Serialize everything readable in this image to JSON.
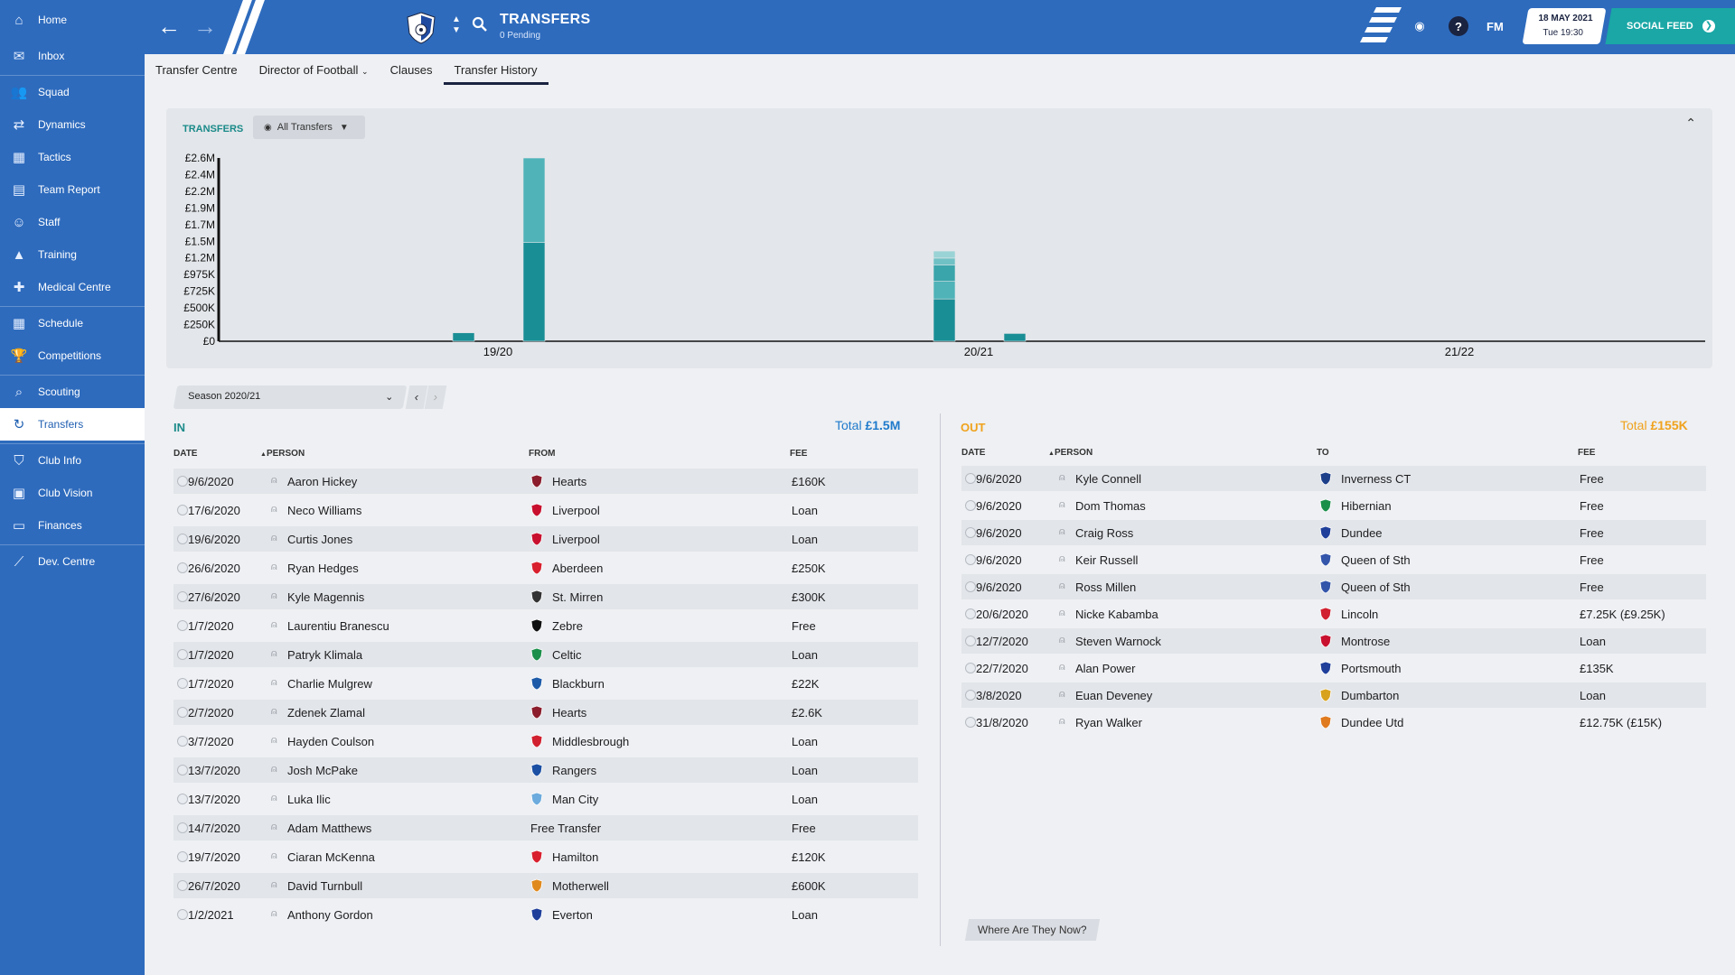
{
  "sidebar": {
    "items": [
      {
        "label": "Home",
        "icon": "home-icon"
      },
      {
        "label": "Inbox",
        "icon": "inbox-icon"
      },
      {
        "label": "Squad",
        "icon": "squad-icon"
      },
      {
        "label": "Dynamics",
        "icon": "dynamics-icon"
      },
      {
        "label": "Tactics",
        "icon": "tactics-icon"
      },
      {
        "label": "Team Report",
        "icon": "report-icon"
      },
      {
        "label": "Staff",
        "icon": "staff-icon"
      },
      {
        "label": "Training",
        "icon": "training-icon"
      },
      {
        "label": "Medical Centre",
        "icon": "medical-icon"
      },
      {
        "label": "Schedule",
        "icon": "calendar-icon"
      },
      {
        "label": "Competitions",
        "icon": "trophy-icon"
      },
      {
        "label": "Scouting",
        "icon": "search-icon"
      },
      {
        "label": "Transfers",
        "icon": "refresh-icon"
      },
      {
        "label": "Club Info",
        "icon": "shield-icon"
      },
      {
        "label": "Club Vision",
        "icon": "vision-icon"
      },
      {
        "label": "Finances",
        "icon": "cash-icon"
      },
      {
        "label": "Dev. Centre",
        "icon": "growth-icon"
      }
    ]
  },
  "header": {
    "title": "TRANSFERS",
    "subtitle": "0 Pending",
    "fm_logo": "FM",
    "date": "18 MAY 2021",
    "time": "Tue 19:30",
    "social_feed": "SOCIAL FEED"
  },
  "tabs": [
    "Transfer Centre",
    "Director of Football",
    "Clauses",
    "Transfer History"
  ],
  "colors": {
    "accent": "#2e6bbd",
    "teal": "#1aa7a6",
    "in_title": "#1a8a89",
    "out_title": "#f0a21c",
    "bar_dark": "#1a8e95",
    "bar_light": "#4fb3b8"
  },
  "chart_panel": {
    "label": "TRANSFERS",
    "filter": "All Transfers"
  },
  "chart_data": {
    "type": "bar",
    "stacked": true,
    "ytick_labels": [
      "£0",
      "£250K",
      "£500K",
      "£725K",
      "£975K",
      "£1.2M",
      "£1.5M",
      "£1.7M",
      "£1.9M",
      "£2.2M",
      "£2.4M",
      "£2.6M"
    ],
    "ylim": [
      0,
      2600000
    ],
    "xtick_labels": [
      "19/20",
      "20/21",
      "21/22"
    ],
    "bars": [
      {
        "season": "19/20",
        "side": "left",
        "segments": [
          120000
        ]
      },
      {
        "season": "19/20",
        "side": "right",
        "segments": [
          1400000,
          1200000
        ]
      },
      {
        "season": "20/21",
        "side": "left",
        "segments": [
          600000,
          250000,
          230000,
          100000,
          100000
        ]
      },
      {
        "season": "20/21",
        "side": "right",
        "segments": [
          110000
        ]
      }
    ]
  },
  "season_selector": {
    "value": "Season 2020/21"
  },
  "in": {
    "title": "IN",
    "total_label": "Total",
    "total_value": "£1.5M",
    "headers": {
      "date": "DATE",
      "person": "PERSON",
      "club": "FROM",
      "fee": "FEE"
    },
    "rows": [
      {
        "date": "9/6/2020",
        "person": "Aaron Hickey",
        "club": "Hearts",
        "fee": "£160K",
        "badge": "#8b1d2c"
      },
      {
        "date": "17/6/2020",
        "person": "Neco Williams",
        "club": "Liverpool",
        "fee": "Loan",
        "badge": "#c8102e"
      },
      {
        "date": "19/6/2020",
        "person": "Curtis Jones",
        "club": "Liverpool",
        "fee": "Loan",
        "badge": "#c8102e"
      },
      {
        "date": "26/6/2020",
        "person": "Ryan Hedges",
        "club": "Aberdeen",
        "fee": "£250K",
        "badge": "#d8202f"
      },
      {
        "date": "27/6/2020",
        "person": "Kyle Magennis",
        "club": "St. Mirren",
        "fee": "£300K",
        "badge": "#333333"
      },
      {
        "date": "1/7/2020",
        "person": "Laurentiu Branescu",
        "club": "Zebre",
        "fee": "Free",
        "badge": "#111111"
      },
      {
        "date": "1/7/2020",
        "person": "Patryk Klimala",
        "club": "Celtic",
        "fee": "Loan",
        "badge": "#1a8f4a"
      },
      {
        "date": "1/7/2020",
        "person": "Charlie Mulgrew",
        "club": "Blackburn",
        "fee": "£22K",
        "badge": "#1d5aa8"
      },
      {
        "date": "2/7/2020",
        "person": "Zdenek Zlamal",
        "club": "Hearts",
        "fee": "£2.6K",
        "badge": "#8b1d2c"
      },
      {
        "date": "3/7/2020",
        "person": "Hayden Coulson",
        "club": "Middlesbrough",
        "fee": "Loan",
        "badge": "#d1202f"
      },
      {
        "date": "13/7/2020",
        "person": "Josh McPake",
        "club": "Rangers",
        "fee": "Loan",
        "badge": "#1b4fa3"
      },
      {
        "date": "13/7/2020",
        "person": "Luka Ilic",
        "club": "Man City",
        "fee": "Loan",
        "badge": "#6cabdd"
      },
      {
        "date": "14/7/2020",
        "person": "Adam Matthews",
        "club": "Free Transfer",
        "fee": "Free",
        "badge": ""
      },
      {
        "date": "19/7/2020",
        "person": "Ciaran McKenna",
        "club": "Hamilton",
        "fee": "£120K",
        "badge": "#d8202f"
      },
      {
        "date": "26/7/2020",
        "person": "David Turnbull",
        "club": "Motherwell",
        "fee": "£600K",
        "badge": "#e08a1e"
      },
      {
        "date": "1/2/2021",
        "person": "Anthony Gordon",
        "club": "Everton",
        "fee": "Loan",
        "badge": "#1f3f9a"
      }
    ]
  },
  "out": {
    "title": "OUT",
    "total_label": "Total",
    "total_value": "£155K",
    "headers": {
      "date": "DATE",
      "person": "PERSON",
      "club": "TO",
      "fee": "FEE"
    },
    "rows": [
      {
        "date": "9/6/2020",
        "person": "Kyle Connell",
        "club": "Inverness CT",
        "fee": "Free",
        "badge": "#1d3f8a"
      },
      {
        "date": "9/6/2020",
        "person": "Dom Thomas",
        "club": "Hibernian",
        "fee": "Free",
        "badge": "#1a8f4a"
      },
      {
        "date": "9/6/2020",
        "person": "Craig Ross",
        "club": "Dundee",
        "fee": "Free",
        "badge": "#1f3f9a"
      },
      {
        "date": "9/6/2020",
        "person": "Keir Russell",
        "club": "Queen of Sth",
        "fee": "Free",
        "badge": "#3355aa"
      },
      {
        "date": "9/6/2020",
        "person": "Ross Millen",
        "club": "Queen of Sth",
        "fee": "Free",
        "badge": "#3355aa"
      },
      {
        "date": "20/6/2020",
        "person": "Nicke Kabamba",
        "club": "Lincoln",
        "fee": "£7.25K (£9.25K)",
        "badge": "#d1202f"
      },
      {
        "date": "12/7/2020",
        "person": "Steven Warnock",
        "club": "Montrose",
        "fee": "Loan",
        "badge": "#c8102e"
      },
      {
        "date": "22/7/2020",
        "person": "Alan Power",
        "club": "Portsmouth",
        "fee": "£135K",
        "badge": "#1f3f9a"
      },
      {
        "date": "3/8/2020",
        "person": "Euan Deveney",
        "club": "Dumbarton",
        "fee": "Loan",
        "badge": "#d8a21c"
      },
      {
        "date": "31/8/2020",
        "person": "Ryan Walker",
        "club": "Dundee Utd",
        "fee": "£12.75K (£15K)",
        "badge": "#e07a1e"
      }
    ]
  },
  "where_button": "Where Are They Now?"
}
